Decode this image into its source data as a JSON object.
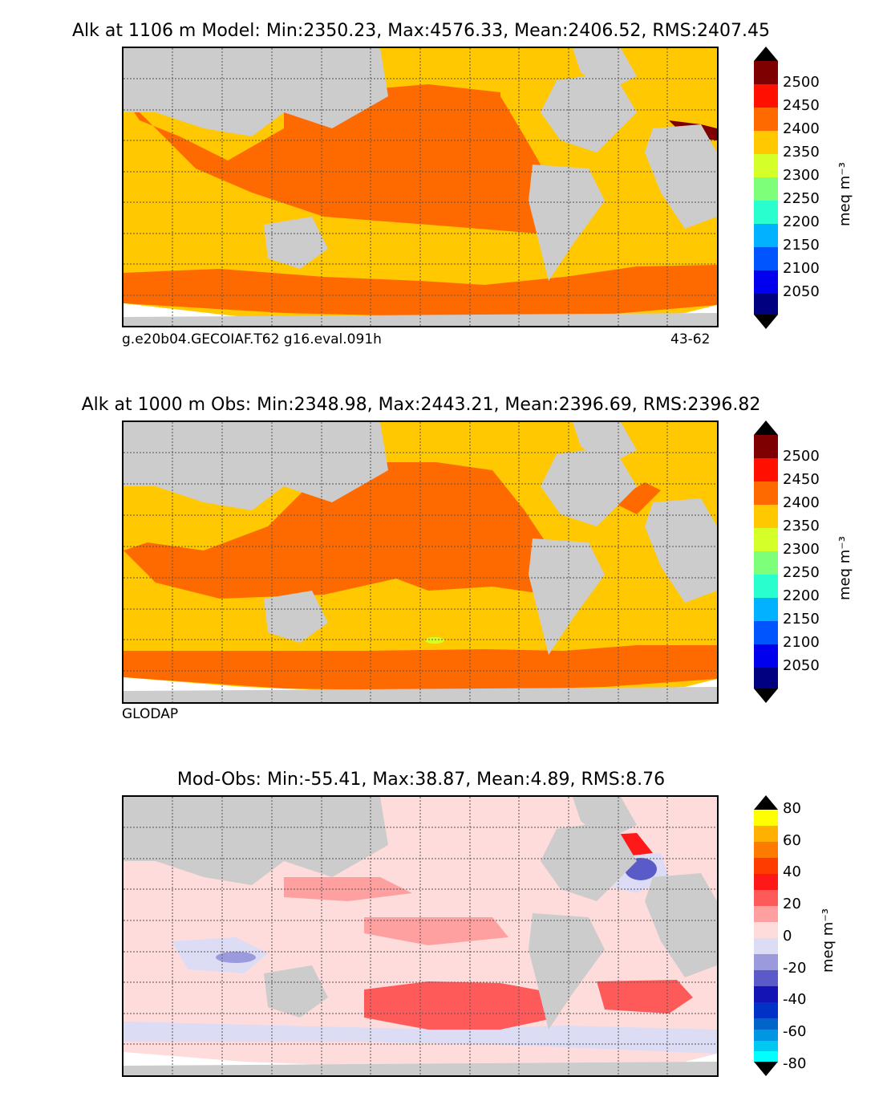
{
  "panels": [
    {
      "id": "model",
      "title": "Alk at 1106 m Model: Min:2350.23, Max:4576.33, Mean:2406.52, RMS:2407.45",
      "footer_left": "g.e20b04.GECOIAF.T62 g16.eval.091h",
      "footer_right": "43-62",
      "colorbar": {
        "unit": "meq m⁻³",
        "ticks": [
          "2500",
          "2450",
          "2400",
          "2350",
          "2300",
          "2250",
          "2200",
          "2150",
          "2100",
          "2050"
        ],
        "colors": [
          "#7f0000",
          "#ff1000",
          "#ff6a00",
          "#ffc800",
          "#d4ff28",
          "#7dff7a",
          "#29ffce",
          "#00b2ff",
          "#0055ff",
          "#0000ee",
          "#000080"
        ],
        "over_color": "#000000",
        "under_color": "#000000"
      }
    },
    {
      "id": "obs",
      "title": "Alk at 1000 m Obs: Min:2348.98, Max:2443.21, Mean:2396.69, RMS:2396.82",
      "footer_left": "GLODAP",
      "colorbar": {
        "unit": "meq m⁻³",
        "ticks": [
          "2500",
          "2450",
          "2400",
          "2350",
          "2300",
          "2250",
          "2200",
          "2150",
          "2100",
          "2050"
        ],
        "colors": [
          "#7f0000",
          "#ff1000",
          "#ff6a00",
          "#ffc800",
          "#d4ff28",
          "#7dff7a",
          "#29ffce",
          "#00b2ff",
          "#0055ff",
          "#0000ee",
          "#000080"
        ],
        "over_color": "#000000",
        "under_color": "#000000"
      }
    },
    {
      "id": "diff",
      "title": "Mod-Obs: Min:-55.41, Max:38.87, Mean:4.89, RMS:8.76",
      "colorbar": {
        "unit": "meq m⁻³",
        "ticks": [
          "80",
          "60",
          "40",
          "20",
          "0",
          "-20",
          "-40",
          "-60",
          "-80"
        ],
        "colors": [
          "#ffff00",
          "#ffb000",
          "#ff7a00",
          "#ff3c00",
          "#ff1818",
          "#ff5a5a",
          "#ffa0a0",
          "#ffdcdc",
          "#dcdcf5",
          "#9a9adc",
          "#5a5ac8",
          "#1414b4",
          "#0032c8",
          "#0064c8",
          "#0096e1",
          "#00c8f0",
          "#00ffff"
        ],
        "over_color": "#000000",
        "under_color": "#000000"
      }
    }
  ],
  "colors": {
    "land": "#cccccc",
    "ice_nodata": "#ffffff",
    "grid": "#555555"
  }
}
